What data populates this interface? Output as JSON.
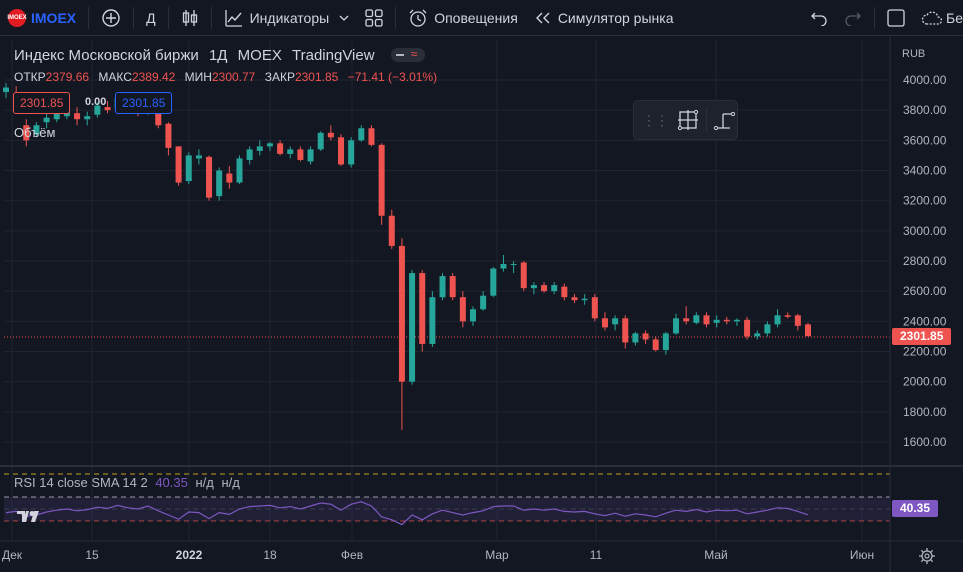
{
  "toolbar": {
    "symbol_badge": "IMOEX",
    "symbol": "IMOEX",
    "interval": "Д",
    "indicators_label": "Индикаторы",
    "alerts_label": "Оповещения",
    "replay_label": "Симулятор рынка",
    "cut_label": "Бе"
  },
  "legend": {
    "title": "Индекс Московской биржи",
    "interval": "1Д",
    "exchange": "MOEX",
    "source": "TradingView",
    "open_label": "ОТКР",
    "open": "2379.66",
    "high_label": "МАКС",
    "high": "2389.42",
    "low_label": "МИН",
    "low": "2300.77",
    "close_label": "ЗАКР",
    "close": "2301.85",
    "change": "−71.41 (−3.01%)",
    "sell_price": "2301.85",
    "spread": "0.00",
    "buy_price": "2301.85",
    "volume_label": "Объём"
  },
  "rsi": {
    "label": "RSI 14 close SMA 14 2",
    "value": "40.35",
    "na1": "н/д",
    "na2": "н/д",
    "tag": "40.35"
  },
  "price_axis": {
    "currency": "RUB",
    "labels": [
      "4000.00",
      "3800.00",
      "3600.00",
      "3400.00",
      "3200.00",
      "3000.00",
      "2800.00",
      "2600.00",
      "2400.00",
      "2200.00",
      "2000.00",
      "1800.00",
      "1600.00"
    ],
    "last_price": "2301.85"
  },
  "time_axis": {
    "labels": [
      "Дек",
      "15",
      "2022",
      "18",
      "Фев",
      "Мар",
      "11",
      "Май",
      "Июн"
    ]
  },
  "colors": {
    "up": "#26a69a",
    "down": "#ef5350",
    "background": "#131722",
    "grid": "#1f2430",
    "rsi_line": "#7e57c2",
    "accent": "#2962ff"
  },
  "chart_data": {
    "type": "candlestick",
    "ylim": [
      1500,
      4100
    ],
    "candles": [
      {
        "o": 3920,
        "h": 3980,
        "l": 3880,
        "c": 3950
      },
      {
        "o": 3900,
        "h": 3960,
        "l": 3860,
        "c": 3880
      },
      {
        "o": 3700,
        "h": 3740,
        "l": 3560,
        "c": 3600
      },
      {
        "o": 3640,
        "h": 3720,
        "l": 3620,
        "c": 3700
      },
      {
        "o": 3720,
        "h": 3790,
        "l": 3680,
        "c": 3750
      },
      {
        "o": 3740,
        "h": 3800,
        "l": 3720,
        "c": 3780
      },
      {
        "o": 3760,
        "h": 3830,
        "l": 3740,
        "c": 3800
      },
      {
        "o": 3780,
        "h": 3820,
        "l": 3700,
        "c": 3740
      },
      {
        "o": 3740,
        "h": 3790,
        "l": 3700,
        "c": 3760
      },
      {
        "o": 3770,
        "h": 3850,
        "l": 3750,
        "c": 3830
      },
      {
        "o": 3820,
        "h": 3860,
        "l": 3780,
        "c": 3800
      },
      {
        "o": 3810,
        "h": 3900,
        "l": 3800,
        "c": 3880
      },
      {
        "o": 3870,
        "h": 3890,
        "l": 3790,
        "c": 3810
      },
      {
        "o": 3810,
        "h": 3850,
        "l": 3760,
        "c": 3780
      },
      {
        "o": 3790,
        "h": 3860,
        "l": 3770,
        "c": 3840
      },
      {
        "o": 3850,
        "h": 3870,
        "l": 3680,
        "c": 3700
      },
      {
        "o": 3710,
        "h": 3720,
        "l": 3500,
        "c": 3550
      },
      {
        "o": 3560,
        "h": 3560,
        "l": 3300,
        "c": 3320
      },
      {
        "o": 3330,
        "h": 3520,
        "l": 3310,
        "c": 3500
      },
      {
        "o": 3480,
        "h": 3540,
        "l": 3440,
        "c": 3500
      },
      {
        "o": 3490,
        "h": 3500,
        "l": 3200,
        "c": 3220
      },
      {
        "o": 3230,
        "h": 3420,
        "l": 3200,
        "c": 3400
      },
      {
        "o": 3380,
        "h": 3430,
        "l": 3280,
        "c": 3320
      },
      {
        "o": 3320,
        "h": 3500,
        "l": 3310,
        "c": 3480
      },
      {
        "o": 3470,
        "h": 3560,
        "l": 3440,
        "c": 3540
      },
      {
        "o": 3530,
        "h": 3600,
        "l": 3500,
        "c": 3560
      },
      {
        "o": 3560,
        "h": 3590,
        "l": 3530,
        "c": 3580
      },
      {
        "o": 3580,
        "h": 3600,
        "l": 3500,
        "c": 3510
      },
      {
        "o": 3510,
        "h": 3560,
        "l": 3480,
        "c": 3540
      },
      {
        "o": 3540,
        "h": 3560,
        "l": 3460,
        "c": 3470
      },
      {
        "o": 3460,
        "h": 3560,
        "l": 3440,
        "c": 3540
      },
      {
        "o": 3540,
        "h": 3660,
        "l": 3530,
        "c": 3650
      },
      {
        "o": 3650,
        "h": 3700,
        "l": 3600,
        "c": 3620
      },
      {
        "o": 3620,
        "h": 3640,
        "l": 3430,
        "c": 3440
      },
      {
        "o": 3440,
        "h": 3620,
        "l": 3420,
        "c": 3600
      },
      {
        "o": 3600,
        "h": 3700,
        "l": 3590,
        "c": 3680
      },
      {
        "o": 3680,
        "h": 3700,
        "l": 3560,
        "c": 3570
      },
      {
        "o": 3570,
        "h": 3580,
        "l": 3040,
        "c": 3100
      },
      {
        "o": 3100,
        "h": 3140,
        "l": 2880,
        "c": 2900
      },
      {
        "o": 2900,
        "h": 2950,
        "l": 1680,
        "c": 2000
      },
      {
        "o": 2000,
        "h": 2740,
        "l": 1980,
        "c": 2720
      },
      {
        "o": 2720,
        "h": 2740,
        "l": 2200,
        "c": 2250
      },
      {
        "o": 2250,
        "h": 2600,
        "l": 2230,
        "c": 2560
      },
      {
        "o": 2560,
        "h": 2720,
        "l": 2540,
        "c": 2700
      },
      {
        "o": 2700,
        "h": 2720,
        "l": 2540,
        "c": 2560
      },
      {
        "o": 2560,
        "h": 2600,
        "l": 2360,
        "c": 2400
      },
      {
        "o": 2400,
        "h": 2500,
        "l": 2370,
        "c": 2480
      },
      {
        "o": 2480,
        "h": 2600,
        "l": 2470,
        "c": 2570
      },
      {
        "o": 2570,
        "h": 2760,
        "l": 2560,
        "c": 2750
      },
      {
        "o": 2750,
        "h": 2840,
        "l": 2730,
        "c": 2780
      },
      {
        "o": 2780,
        "h": 2800,
        "l": 2720,
        "c": 2780
      },
      {
        "o": 2790,
        "h": 2800,
        "l": 2600,
        "c": 2620
      },
      {
        "o": 2620,
        "h": 2660,
        "l": 2580,
        "c": 2640
      },
      {
        "o": 2640,
        "h": 2660,
        "l": 2590,
        "c": 2600
      },
      {
        "o": 2600,
        "h": 2660,
        "l": 2580,
        "c": 2640
      },
      {
        "o": 2630,
        "h": 2650,
        "l": 2540,
        "c": 2560
      },
      {
        "o": 2560,
        "h": 2580,
        "l": 2520,
        "c": 2540
      },
      {
        "o": 2540,
        "h": 2580,
        "l": 2510,
        "c": 2550
      },
      {
        "o": 2560,
        "h": 2580,
        "l": 2400,
        "c": 2420
      },
      {
        "o": 2420,
        "h": 2460,
        "l": 2340,
        "c": 2360
      },
      {
        "o": 2380,
        "h": 2440,
        "l": 2340,
        "c": 2420
      },
      {
        "o": 2420,
        "h": 2440,
        "l": 2220,
        "c": 2260
      },
      {
        "o": 2260,
        "h": 2330,
        "l": 2240,
        "c": 2320
      },
      {
        "o": 2320,
        "h": 2340,
        "l": 2250,
        "c": 2280
      },
      {
        "o": 2280,
        "h": 2300,
        "l": 2200,
        "c": 2210
      },
      {
        "o": 2210,
        "h": 2330,
        "l": 2180,
        "c": 2320
      },
      {
        "o": 2320,
        "h": 2450,
        "l": 2310,
        "c": 2420
      },
      {
        "o": 2420,
        "h": 2500,
        "l": 2380,
        "c": 2400
      },
      {
        "o": 2390,
        "h": 2460,
        "l": 2380,
        "c": 2440
      },
      {
        "o": 2440,
        "h": 2460,
        "l": 2360,
        "c": 2380
      },
      {
        "o": 2390,
        "h": 2440,
        "l": 2360,
        "c": 2410
      },
      {
        "o": 2410,
        "h": 2430,
        "l": 2380,
        "c": 2400
      },
      {
        "o": 2400,
        "h": 2420,
        "l": 2370,
        "c": 2410
      },
      {
        "o": 2410,
        "h": 2430,
        "l": 2280,
        "c": 2300
      },
      {
        "o": 2300,
        "h": 2340,
        "l": 2280,
        "c": 2320
      },
      {
        "o": 2320,
        "h": 2400,
        "l": 2300,
        "c": 2380
      },
      {
        "o": 2380,
        "h": 2480,
        "l": 2360,
        "c": 2440
      },
      {
        "o": 2440,
        "h": 2460,
        "l": 2420,
        "c": 2430
      },
      {
        "o": 2440,
        "h": 2450,
        "l": 2340,
        "c": 2370
      },
      {
        "o": 2379.66,
        "h": 2389.42,
        "l": 2300.77,
        "c": 2301.85
      }
    ],
    "rsi_levels": [
      70,
      50,
      30
    ],
    "rsi_values": [
      44,
      46,
      38,
      40,
      45,
      48,
      50,
      47,
      49,
      53,
      51,
      56,
      52,
      50,
      55,
      47,
      40,
      33,
      45,
      44,
      34,
      44,
      41,
      50,
      54,
      55,
      56,
      52,
      54,
      50,
      55,
      60,
      58,
      48,
      58,
      62,
      55,
      37,
      32,
      24,
      40,
      32,
      42,
      48,
      44,
      40,
      44,
      47,
      54,
      55,
      55,
      48,
      50,
      48,
      50,
      46,
      45,
      46,
      42,
      39,
      43,
      38,
      42,
      40,
      37,
      43,
      48,
      46,
      49,
      45,
      48,
      47,
      48,
      42,
      45,
      48,
      52,
      51,
      46,
      40.35
    ]
  }
}
